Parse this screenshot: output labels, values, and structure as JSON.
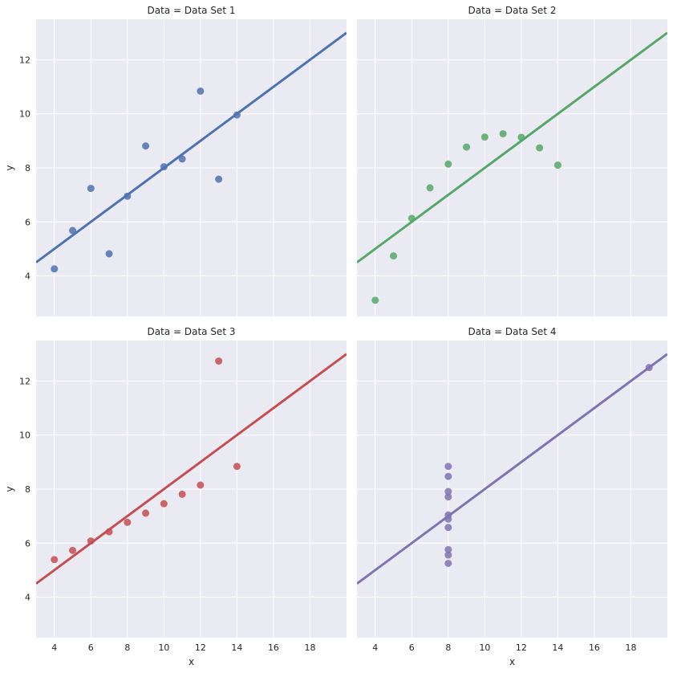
{
  "chart_data": [
    {
      "type": "scatter",
      "title": "Data = Data Set 1",
      "xlabel": "",
      "ylabel": "y",
      "xlim": [
        3,
        20
      ],
      "ylim": [
        2.5,
        13.5
      ],
      "color": "#4c72b0",
      "points": [
        [
          10,
          8.04
        ],
        [
          8,
          6.95
        ],
        [
          13,
          7.58
        ],
        [
          9,
          8.81
        ],
        [
          11,
          8.33
        ],
        [
          14,
          9.96
        ],
        [
          6,
          7.24
        ],
        [
          4,
          4.26
        ],
        [
          12,
          10.84
        ],
        [
          7,
          4.82
        ],
        [
          5,
          5.68
        ]
      ],
      "fit": {
        "slope": 0.5,
        "intercept": 3.0
      }
    },
    {
      "type": "scatter",
      "title": "Data = Data Set 2",
      "xlabel": "",
      "ylabel": "",
      "xlim": [
        3,
        20
      ],
      "ylim": [
        2.5,
        13.5
      ],
      "color": "#55a868",
      "points": [
        [
          10,
          9.14
        ],
        [
          8,
          8.14
        ],
        [
          13,
          8.74
        ],
        [
          9,
          8.77
        ],
        [
          11,
          9.26
        ],
        [
          14,
          8.1
        ],
        [
          6,
          6.13
        ],
        [
          4,
          3.1
        ],
        [
          12,
          9.13
        ],
        [
          7,
          7.26
        ],
        [
          5,
          4.74
        ]
      ],
      "fit": {
        "slope": 0.5,
        "intercept": 3.0
      }
    },
    {
      "type": "scatter",
      "title": "Data = Data Set 3",
      "xlabel": "x",
      "ylabel": "y",
      "xlim": [
        3,
        20
      ],
      "ylim": [
        2.5,
        13.5
      ],
      "color": "#c44e52",
      "points": [
        [
          10,
          7.46
        ],
        [
          8,
          6.77
        ],
        [
          13,
          12.74
        ],
        [
          9,
          7.11
        ],
        [
          11,
          7.81
        ],
        [
          14,
          8.84
        ],
        [
          6,
          6.08
        ],
        [
          4,
          5.39
        ],
        [
          12,
          8.15
        ],
        [
          7,
          6.42
        ],
        [
          5,
          5.73
        ]
      ],
      "fit": {
        "slope": 0.5,
        "intercept": 3.0
      }
    },
    {
      "type": "scatter",
      "title": "Data = Data Set 4",
      "xlabel": "x",
      "ylabel": "",
      "xlim": [
        3,
        20
      ],
      "ylim": [
        2.5,
        13.5
      ],
      "color": "#8172b2",
      "points": [
        [
          8,
          6.58
        ],
        [
          8,
          5.76
        ],
        [
          8,
          7.71
        ],
        [
          8,
          8.84
        ],
        [
          8,
          8.47
        ],
        [
          8,
          7.04
        ],
        [
          8,
          5.25
        ],
        [
          19,
          12.5
        ],
        [
          8,
          5.56
        ],
        [
          8,
          7.91
        ],
        [
          8,
          6.89
        ]
      ],
      "fit": {
        "slope": 0.5,
        "intercept": 3.0
      }
    }
  ],
  "axes": {
    "x_ticks": [
      4,
      6,
      8,
      10,
      12,
      14,
      16,
      18
    ],
    "y_ticks": [
      4,
      6,
      8,
      10,
      12
    ],
    "background": "#eaeaf2",
    "grid": true,
    "grid_color": "#ffffff"
  }
}
